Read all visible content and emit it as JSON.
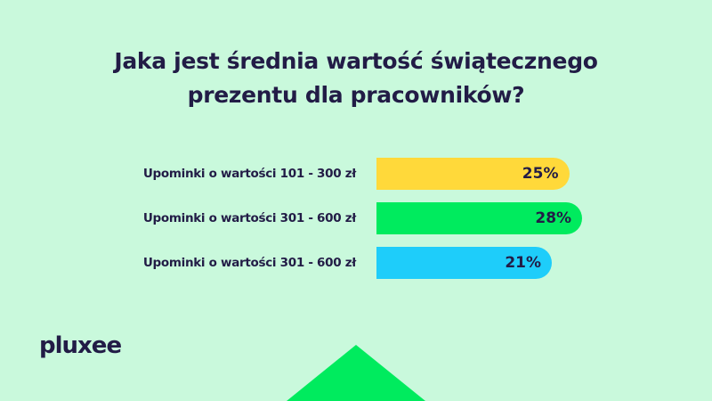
{
  "chart_data": {
    "type": "bar",
    "orientation": "horizontal",
    "title": "Jaka jest średnia wartość świątecznego prezentu dla pracowników?",
    "title_lines": [
      "Jaka jest średnia wartość świątecznego",
      "prezentu dla pracowników?"
    ],
    "categories": [
      "Upominki o wartości 101 - 300 zł",
      "Upominki o wartości 301 - 600 zł",
      "Upominki o wartości 301 - 600 zł"
    ],
    "values": [
      25,
      28,
      21
    ],
    "value_labels": [
      "25%",
      "28%",
      "21%"
    ],
    "colors": [
      "#ffd93a",
      "#00eb5e",
      "#1ecdfa"
    ],
    "grid": false,
    "legend": "none"
  },
  "brand": {
    "logo": "pluxee",
    "accent": "#00eb5e",
    "background": "#c9f9dc",
    "text_color": "#221c46"
  }
}
